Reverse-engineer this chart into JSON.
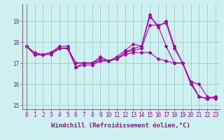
{
  "title": "",
  "xlabel": "Windchill (Refroidissement éolien,°C)",
  "ylabel": "",
  "xlim": [
    -0.5,
    23.5
  ],
  "ylim": [
    14.8,
    19.8
  ],
  "yticks": [
    15,
    16,
    17,
    18,
    19
  ],
  "xticks": [
    0,
    1,
    2,
    3,
    4,
    5,
    6,
    7,
    8,
    9,
    10,
    11,
    12,
    13,
    14,
    15,
    16,
    17,
    18,
    19,
    20,
    21,
    22,
    23
  ],
  "background_color": "#cff0f0",
  "line_color": "#aa00aa",
  "grid_color": "#99cccc",
  "series": [
    [
      17.8,
      17.5,
      17.4,
      17.5,
      17.8,
      17.8,
      16.8,
      17.0,
      17.0,
      17.3,
      17.1,
      17.3,
      17.6,
      17.9,
      17.8,
      19.3,
      18.7,
      19.0,
      17.8,
      17.0,
      16.1,
      15.4,
      15.3,
      15.4
    ],
    [
      17.8,
      17.4,
      17.4,
      17.5,
      17.7,
      17.7,
      17.0,
      17.0,
      17.0,
      17.2,
      17.1,
      17.2,
      17.5,
      17.6,
      17.7,
      18.8,
      18.8,
      17.8,
      17.0,
      17.0,
      16.1,
      15.4,
      15.3,
      15.4
    ],
    [
      17.8,
      17.4,
      17.4,
      17.5,
      17.7,
      17.7,
      16.8,
      16.9,
      16.9,
      17.1,
      17.1,
      17.2,
      17.5,
      17.7,
      17.8,
      19.2,
      18.8,
      18.9,
      17.7,
      17.0,
      16.0,
      15.4,
      15.3,
      15.4
    ],
    [
      17.8,
      17.4,
      17.4,
      17.4,
      17.7,
      17.7,
      17.0,
      17.0,
      17.0,
      17.1,
      17.1,
      17.2,
      17.4,
      17.5,
      17.5,
      17.5,
      17.2,
      17.1,
      17.0,
      17.0,
      16.1,
      16.0,
      15.4,
      15.3
    ]
  ],
  "marker": "D",
  "markersize": 2.0,
  "linewidth": 0.8,
  "tick_fontsize": 5.5,
  "xlabel_fontsize": 6.5
}
